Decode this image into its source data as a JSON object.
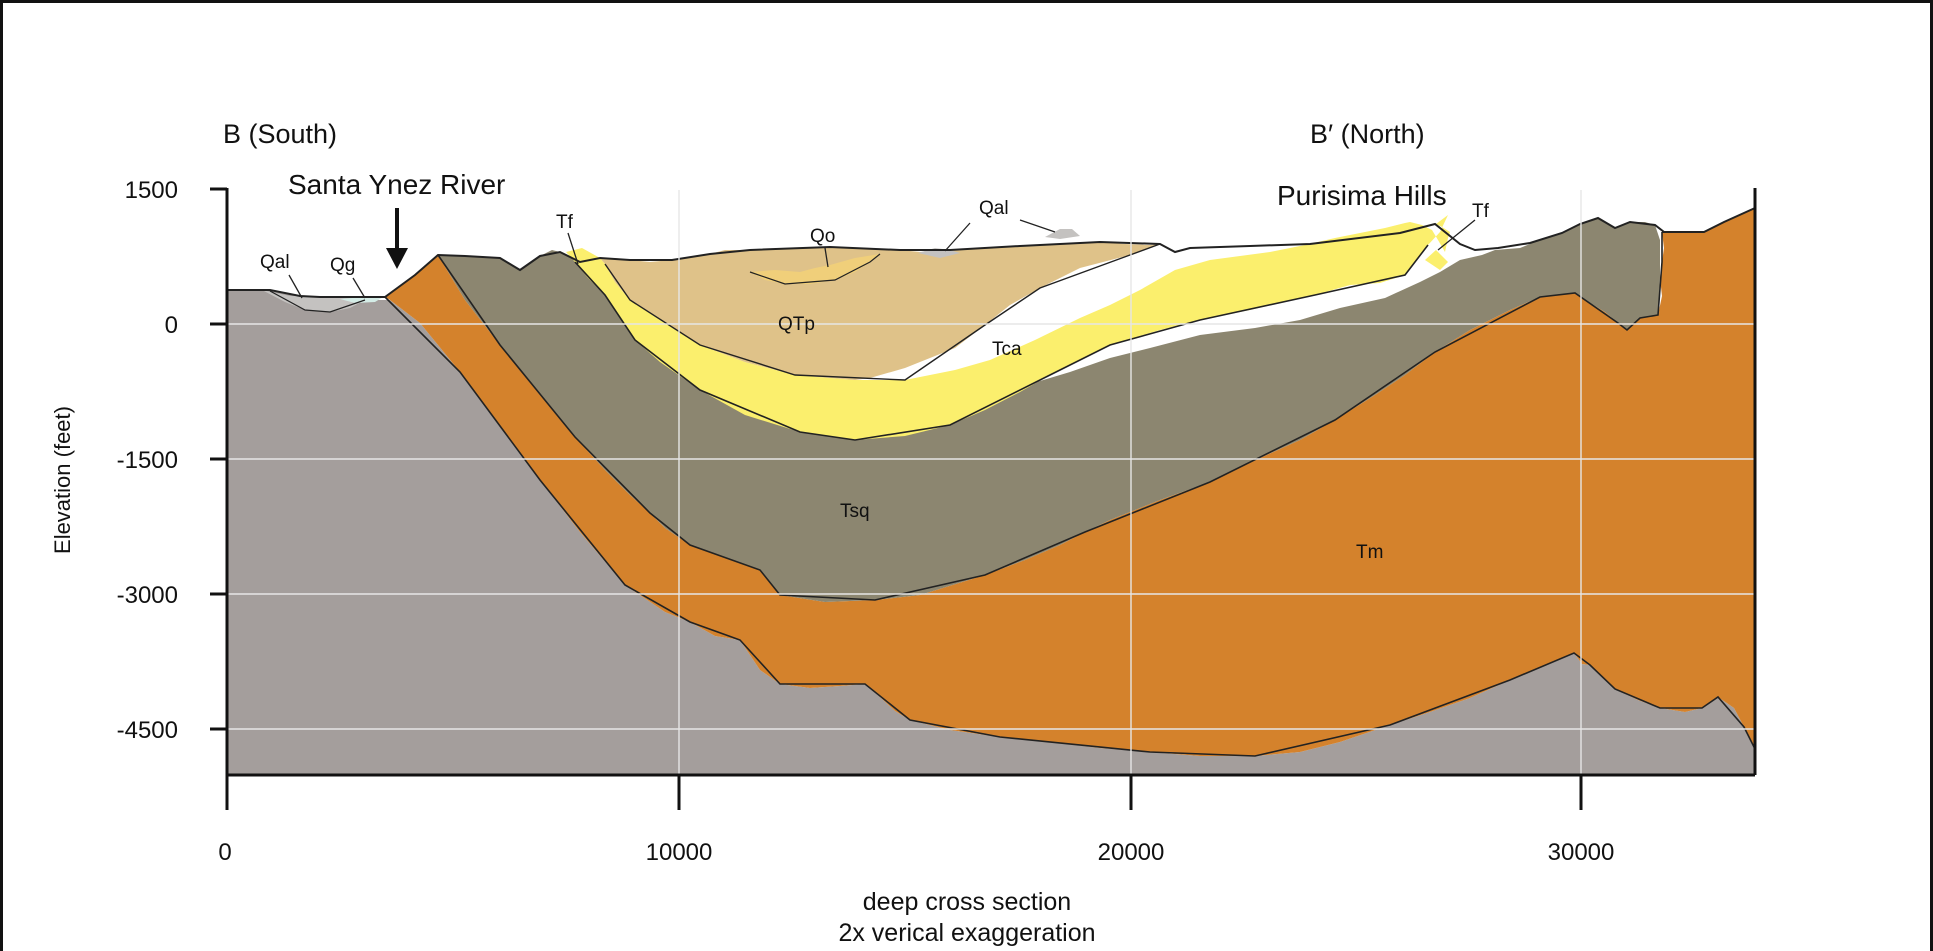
{
  "section_left_label": "B (South)",
  "section_right_label": "B′ (North)",
  "place_labels": {
    "santa_ynez": "Santa Ynez River",
    "purisima": "Purisima Hills"
  },
  "y_axis": {
    "label": "Elevation (feet)",
    "ticks": [
      "1500",
      "0",
      "-1500",
      "-3000",
      "-4500"
    ]
  },
  "x_axis": {
    "ticks": [
      "0",
      "10000",
      "20000",
      "30000"
    ],
    "caption_line1": "deep cross section",
    "caption_line2": "2x verical exaggeration"
  },
  "units": {
    "qal_left": "Qal",
    "qg": "Qg",
    "tf_left": "Tf",
    "qo": "Qo",
    "qal_top": "Qal",
    "tf_right": "Tf",
    "qtp": "QTp",
    "tca": "Tca",
    "tsq": "Tsq",
    "tm": "Tm"
  },
  "colors": {
    "basement_gray": "#a49e9c",
    "tm_orange": "#d4822c",
    "tsq_olive": "#8c8670",
    "tca_yellow": "#fbef6d",
    "qtp_tan": "#dfc289",
    "qo_tan": "#f0cf7a",
    "alluvium": "#c4c2c0",
    "qg_blue": "#d4ece6"
  }
}
